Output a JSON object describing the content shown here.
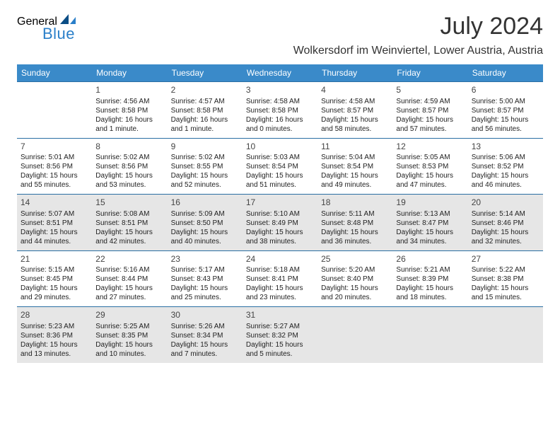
{
  "header": {
    "logo_general": "General",
    "logo_blue": "Blue",
    "title": "July 2024",
    "location": "Wolkersdorf im Weinviertel, Lower Austria, Austria"
  },
  "colors": {
    "header_bg": "#3a8ac9",
    "header_text": "#ffffff",
    "row_divider": "#2a6fa3",
    "shaded_bg": "#e6e6e6",
    "body_text": "#222222",
    "title_text": "#333333",
    "logo_blue": "#2a7fc9",
    "logo_gray": "#555555"
  },
  "dayNames": [
    "Sunday",
    "Monday",
    "Tuesday",
    "Wednesday",
    "Thursday",
    "Friday",
    "Saturday"
  ],
  "weeks": [
    [
      {
        "n": "",
        "sr": "",
        "ss": "",
        "dl": ""
      },
      {
        "n": "1",
        "sr": "4:56 AM",
        "ss": "8:58 PM",
        "dl": "16 hours and 1 minute."
      },
      {
        "n": "2",
        "sr": "4:57 AM",
        "ss": "8:58 PM",
        "dl": "16 hours and 1 minute."
      },
      {
        "n": "3",
        "sr": "4:58 AM",
        "ss": "8:58 PM",
        "dl": "16 hours and 0 minutes."
      },
      {
        "n": "4",
        "sr": "4:58 AM",
        "ss": "8:57 PM",
        "dl": "15 hours and 58 minutes."
      },
      {
        "n": "5",
        "sr": "4:59 AM",
        "ss": "8:57 PM",
        "dl": "15 hours and 57 minutes."
      },
      {
        "n": "6",
        "sr": "5:00 AM",
        "ss": "8:57 PM",
        "dl": "15 hours and 56 minutes."
      }
    ],
    [
      {
        "n": "7",
        "sr": "5:01 AM",
        "ss": "8:56 PM",
        "dl": "15 hours and 55 minutes."
      },
      {
        "n": "8",
        "sr": "5:02 AM",
        "ss": "8:56 PM",
        "dl": "15 hours and 53 minutes."
      },
      {
        "n": "9",
        "sr": "5:02 AM",
        "ss": "8:55 PM",
        "dl": "15 hours and 52 minutes."
      },
      {
        "n": "10",
        "sr": "5:03 AM",
        "ss": "8:54 PM",
        "dl": "15 hours and 51 minutes."
      },
      {
        "n": "11",
        "sr": "5:04 AM",
        "ss": "8:54 PM",
        "dl": "15 hours and 49 minutes."
      },
      {
        "n": "12",
        "sr": "5:05 AM",
        "ss": "8:53 PM",
        "dl": "15 hours and 47 minutes."
      },
      {
        "n": "13",
        "sr": "5:06 AM",
        "ss": "8:52 PM",
        "dl": "15 hours and 46 minutes."
      }
    ],
    [
      {
        "n": "14",
        "sr": "5:07 AM",
        "ss": "8:51 PM",
        "dl": "15 hours and 44 minutes."
      },
      {
        "n": "15",
        "sr": "5:08 AM",
        "ss": "8:51 PM",
        "dl": "15 hours and 42 minutes."
      },
      {
        "n": "16",
        "sr": "5:09 AM",
        "ss": "8:50 PM",
        "dl": "15 hours and 40 minutes."
      },
      {
        "n": "17",
        "sr": "5:10 AM",
        "ss": "8:49 PM",
        "dl": "15 hours and 38 minutes."
      },
      {
        "n": "18",
        "sr": "5:11 AM",
        "ss": "8:48 PM",
        "dl": "15 hours and 36 minutes."
      },
      {
        "n": "19",
        "sr": "5:13 AM",
        "ss": "8:47 PM",
        "dl": "15 hours and 34 minutes."
      },
      {
        "n": "20",
        "sr": "5:14 AM",
        "ss": "8:46 PM",
        "dl": "15 hours and 32 minutes."
      }
    ],
    [
      {
        "n": "21",
        "sr": "5:15 AM",
        "ss": "8:45 PM",
        "dl": "15 hours and 29 minutes."
      },
      {
        "n": "22",
        "sr": "5:16 AM",
        "ss": "8:44 PM",
        "dl": "15 hours and 27 minutes."
      },
      {
        "n": "23",
        "sr": "5:17 AM",
        "ss": "8:43 PM",
        "dl": "15 hours and 25 minutes."
      },
      {
        "n": "24",
        "sr": "5:18 AM",
        "ss": "8:41 PM",
        "dl": "15 hours and 23 minutes."
      },
      {
        "n": "25",
        "sr": "5:20 AM",
        "ss": "8:40 PM",
        "dl": "15 hours and 20 minutes."
      },
      {
        "n": "26",
        "sr": "5:21 AM",
        "ss": "8:39 PM",
        "dl": "15 hours and 18 minutes."
      },
      {
        "n": "27",
        "sr": "5:22 AM",
        "ss": "8:38 PM",
        "dl": "15 hours and 15 minutes."
      }
    ],
    [
      {
        "n": "28",
        "sr": "5:23 AM",
        "ss": "8:36 PM",
        "dl": "15 hours and 13 minutes."
      },
      {
        "n": "29",
        "sr": "5:25 AM",
        "ss": "8:35 PM",
        "dl": "15 hours and 10 minutes."
      },
      {
        "n": "30",
        "sr": "5:26 AM",
        "ss": "8:34 PM",
        "dl": "15 hours and 7 minutes."
      },
      {
        "n": "31",
        "sr": "5:27 AM",
        "ss": "8:32 PM",
        "dl": "15 hours and 5 minutes."
      },
      {
        "n": "",
        "sr": "",
        "ss": "",
        "dl": ""
      },
      {
        "n": "",
        "sr": "",
        "ss": "",
        "dl": ""
      },
      {
        "n": "",
        "sr": "",
        "ss": "",
        "dl": ""
      }
    ]
  ],
  "labels": {
    "sunrise_prefix": "Sunrise: ",
    "sunset_prefix": "Sunset: ",
    "daylight_prefix": "Daylight: "
  },
  "shadedWeeks": [
    2,
    4
  ]
}
